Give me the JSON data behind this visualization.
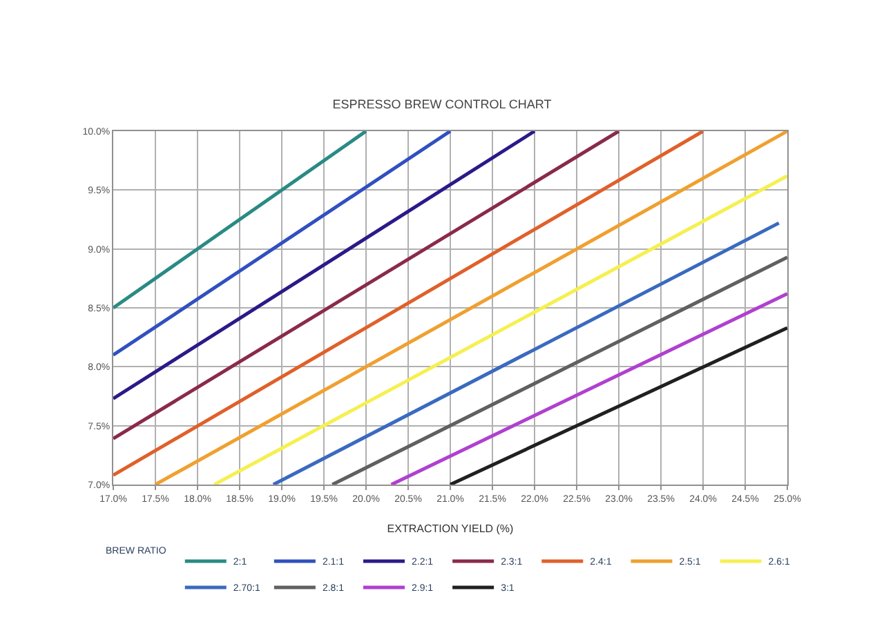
{
  "chart_data": {
    "type": "line",
    "title": "ESPRESSO BREW CONTROL CHART",
    "xlabel": "EXTRACTION YIELD (%)",
    "legend_title": "BREW RATIO",
    "xlim": [
      17,
      25
    ],
    "ylim": [
      7,
      10
    ],
    "xticks": [
      {
        "value": 17,
        "label": "17.0%"
      },
      {
        "value": 17.5,
        "label": "17.5%"
      },
      {
        "value": 18,
        "label": "18.0%"
      },
      {
        "value": 18.5,
        "label": "18.5%"
      },
      {
        "value": 19,
        "label": "19.0%"
      },
      {
        "value": 19.5,
        "label": "19.5%"
      },
      {
        "value": 20,
        "label": "20.0%"
      },
      {
        "value": 20.5,
        "label": "20.5%"
      },
      {
        "value": 21,
        "label": "21.0%"
      },
      {
        "value": 21.5,
        "label": "21.5%"
      },
      {
        "value": 22,
        "label": "22.0%"
      },
      {
        "value": 22.5,
        "label": "22.5%"
      },
      {
        "value": 23,
        "label": "23.0%"
      },
      {
        "value": 23.5,
        "label": "23.5%"
      },
      {
        "value": 24,
        "label": "24.0%"
      },
      {
        "value": 24.5,
        "label": "24.5%"
      },
      {
        "value": 25,
        "label": "25.0%"
      }
    ],
    "yticks": [
      {
        "value": 7,
        "label": "7.0%"
      },
      {
        "value": 7.5,
        "label": "7.5%"
      },
      {
        "value": 8,
        "label": "8.0%"
      },
      {
        "value": 8.5,
        "label": "8.5%"
      },
      {
        "value": 9,
        "label": "9.0%"
      },
      {
        "value": 9.5,
        "label": "9.5%"
      },
      {
        "value": 10,
        "label": "10.0%"
      }
    ],
    "grid": true,
    "legend": "bottom",
    "marker": "none",
    "line_style": "solid",
    "series": [
      {
        "name": "2:1",
        "color": "#2a8a84",
        "x": [
          17,
          20
        ],
        "values": [
          8.5,
          10
        ]
      },
      {
        "name": "2.1:1",
        "color": "#3050c0",
        "x": [
          17,
          21
        ],
        "values": [
          8.1,
          10
        ]
      },
      {
        "name": "2.2:1",
        "color": "#2a1a88",
        "x": [
          17,
          22
        ],
        "values": [
          7.73,
          10
        ]
      },
      {
        "name": "2.3:1",
        "color": "#8a2a4a",
        "x": [
          17,
          23
        ],
        "values": [
          7.39,
          10
        ]
      },
      {
        "name": "2.4:1",
        "color": "#e0602a",
        "x": [
          17,
          24
        ],
        "values": [
          7.08,
          10
        ]
      },
      {
        "name": "2.5:1",
        "color": "#f0a030",
        "x": [
          17.5,
          25
        ],
        "values": [
          7,
          10
        ]
      },
      {
        "name": "2.6:1",
        "color": "#f5f050",
        "x": [
          18.2,
          25
        ],
        "values": [
          7,
          9.62
        ]
      },
      {
        "name": "2.70:1",
        "color": "#3a6ac0",
        "x": [
          18.9,
          24.9
        ],
        "values": [
          7,
          9.22
        ]
      },
      {
        "name": "2.8:1",
        "color": "#606060",
        "x": [
          19.6,
          25
        ],
        "values": [
          7,
          8.93
        ]
      },
      {
        "name": "2.9:1",
        "color": "#b040d0",
        "x": [
          20.3,
          25
        ],
        "values": [
          7,
          8.62
        ]
      },
      {
        "name": "3:1",
        "color": "#202020",
        "x": [
          21,
          25
        ],
        "values": [
          7,
          8.33
        ]
      }
    ]
  }
}
